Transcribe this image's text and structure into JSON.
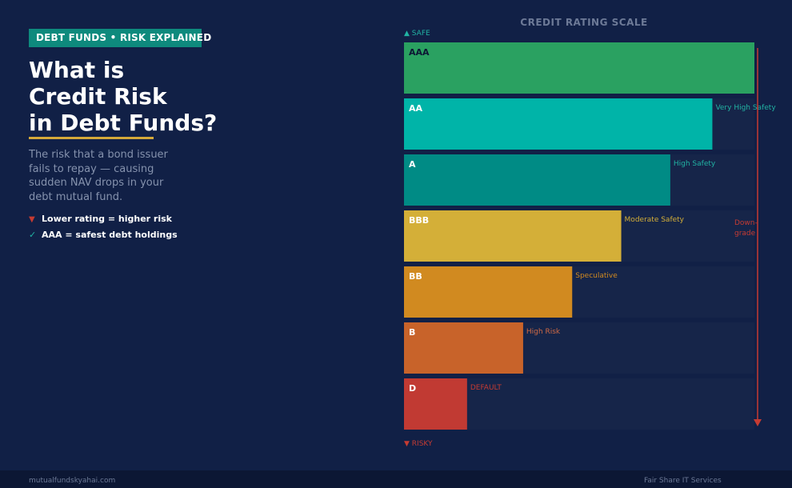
{
  "tag": "DEBT FUNDS  •  RISK EXPLAINED",
  "title_lines": [
    "What is",
    "Credit Risk",
    "in Debt Funds?"
  ],
  "description": "The risk that a bond issuer fails to repay — causing sudden NAV drops in your debt mutual fund.",
  "bullets": [
    {
      "icon": "triangle-down-icon",
      "symbol": "▼",
      "text": "Lower rating = higher risk"
    },
    {
      "icon": "check-icon",
      "symbol": "✓",
      "text": "AAA = safest debt holdings"
    }
  ],
  "labels": {
    "safe": "▲ SAFE",
    "risky": "▼ RISKY",
    "downgrade": "Down-\ngrade"
  },
  "footer": {
    "left": "mutualfundskyahai.com",
    "right": "Fair Share IT Services"
  },
  "colors": {
    "background": "#112046",
    "track": "#162549",
    "accent_teal": "#0e8a7d",
    "accent_gold": "#d5a93a",
    "arrow_red": "#c63b32"
  },
  "chart_data": {
    "type": "bar",
    "orientation": "horizontal",
    "title": "CREDIT RATING SCALE",
    "scale_max": 100,
    "categories": [
      "AAA",
      "AA",
      "A",
      "BBB",
      "BB",
      "B",
      "D"
    ],
    "values": [
      100,
      88,
      76,
      62,
      48,
      34,
      18
    ],
    "annotations": [
      "",
      "Very High Safety",
      "High Safety",
      "Moderate Safety",
      "Speculative",
      "High Risk",
      "DEFAULT"
    ],
    "bar_colors": [
      "#2aa161",
      "#00b4a8",
      "#008b85",
      "#d4af38",
      "#d18a20",
      "#c8632a",
      "#c13a33"
    ],
    "label_text_colors": [
      "#0c1734",
      "#ffffff",
      "#ffffff",
      "#ffffff",
      "#ffffff",
      "#ffffff",
      "#ffffff"
    ],
    "annotation_colors": [
      "#21b3a3",
      "#21b3a3",
      "#21b3a3",
      "#d4af38",
      "#d18a20",
      "#d06a45",
      "#c63b32"
    ]
  }
}
